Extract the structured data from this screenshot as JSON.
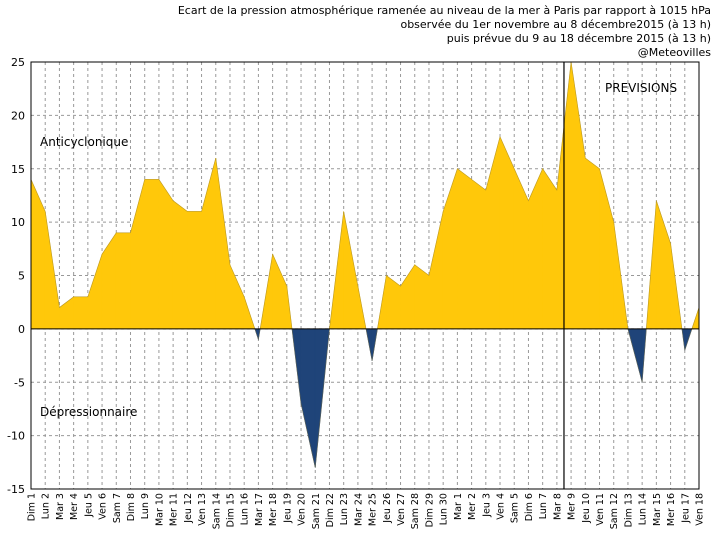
{
  "chart_data": {
    "type": "area",
    "title_lines": [
      "Ecart de la pression atmosphérique ramenée au niveau de la mer à Paris par rapport à 1015 hPa",
      "observée du 1er novembre au 8 décembre2015 (à 13 h)",
      "puis prévue du 9 au 18 décembre 2015 (à 13 h)",
      "@Meteovilles"
    ],
    "xlabel": "",
    "ylabel": "",
    "ylim": [
      -15,
      25
    ],
    "yticks": [
      -15,
      -10,
      -5,
      0,
      5,
      10,
      15,
      20,
      25
    ],
    "grid": true,
    "categories": [
      "Dim 1",
      "Lun 2",
      "Mar 3",
      "Mer 4",
      "Jeu 5",
      "Ven 6",
      "Sam 7",
      "Dim 8",
      "Lun 9",
      "Mar 10",
      "Mer 11",
      "Jeu 12",
      "Ven 13",
      "Sam 14",
      "Dim 15",
      "Lun 16",
      "Mar 17",
      "Mer 18",
      "Jeu 19",
      "Ven 20",
      "Sam 21",
      "Dim 22",
      "Lun 23",
      "Mar 24",
      "Mer 25",
      "Jeu 26",
      "Ven 27",
      "Sam 28",
      "Dim 29",
      "Lun 30",
      "Mar 1",
      "Mer 2",
      "Jeu 3",
      "Ven 4",
      "Sam 5",
      "Dim 6",
      "Lun 7",
      "Mar 8",
      "Mer 9",
      "Jeu 10",
      "Ven 11",
      "Sam 12",
      "Dim 13",
      "Lun 14",
      "Mar 15",
      "Mer 16",
      "Jeu 17",
      "Ven 18"
    ],
    "values": [
      14,
      11,
      2,
      3,
      3,
      7,
      9,
      9,
      14,
      14,
      12,
      11,
      11,
      16,
      6,
      3,
      -1,
      7,
      4,
      -7,
      -13,
      0,
      11,
      4,
      -3,
      5,
      4,
      6,
      5,
      11,
      15,
      14,
      13,
      18,
      15,
      12,
      15,
      13,
      25,
      16,
      15,
      10,
      0,
      -5,
      12,
      8,
      -2,
      2
    ],
    "forecast_start_index": 37.5,
    "annotations": {
      "anticyclonic": "Anticyclonique",
      "depressionary": "Dépressionnaire",
      "forecast": "PREVISIONS"
    },
    "colors": {
      "positive": "#FFC80A",
      "negative": "#1F4479",
      "grid": "#999999",
      "axis": "#000000",
      "forecast_line": "#000000"
    }
  }
}
